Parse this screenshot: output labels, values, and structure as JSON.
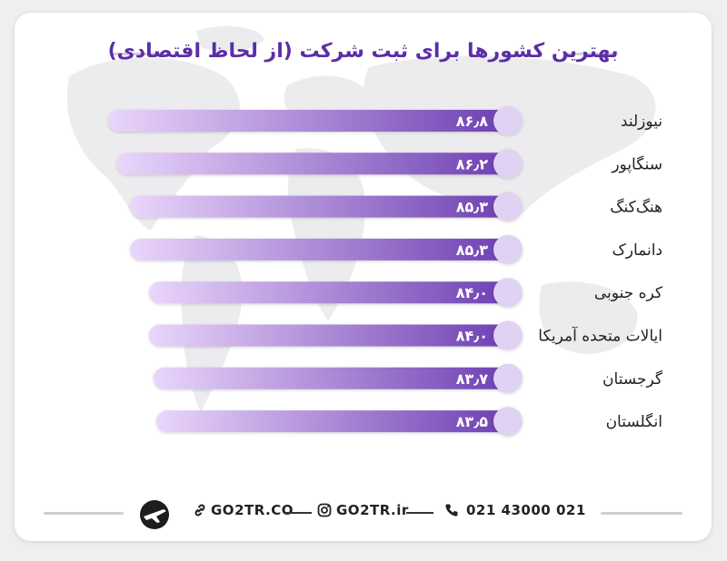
{
  "title": "بهترین کشورها برای ثبت شرکت (از لحاظ اقتصادی)",
  "chart_data": {
    "type": "bar",
    "orientation": "horizontal",
    "title": "بهترین کشورها برای ثبت شرکت (از لحاظ اقتصادی)",
    "categories": [
      "نیوزلند",
      "سنگاپور",
      "هنگ‌کنگ",
      "دانمارک",
      "کره جنوبی",
      "ایالات متحده آمریکا",
      "گرجستان",
      "انگلستان"
    ],
    "values": [
      86.8,
      86.2,
      85.3,
      85.3,
      84.0,
      84.0,
      83.7,
      83.5
    ],
    "value_labels": [
      "۸۶٫۸",
      "۸۶٫۲",
      "۸۵٫۳",
      "۸۵٫۳",
      "۸۴٫۰",
      "۸۴٫۰",
      "۸۳٫۷",
      "۸۳٫۵"
    ],
    "bar_direction": "right-to-left",
    "colors": {
      "bar_start": "#6d3fb2",
      "bar_end": "#ead6fb",
      "cap": "#e0d2f2",
      "text": "#ffffff",
      "label": "#222222"
    }
  },
  "footer": {
    "website": "GO2TR.CO",
    "instagram": "GO2TR.ir",
    "phone": "021 43000 021",
    "icons": [
      "link-icon",
      "instagram-icon",
      "phone-icon",
      "airplane-logo-icon"
    ]
  }
}
